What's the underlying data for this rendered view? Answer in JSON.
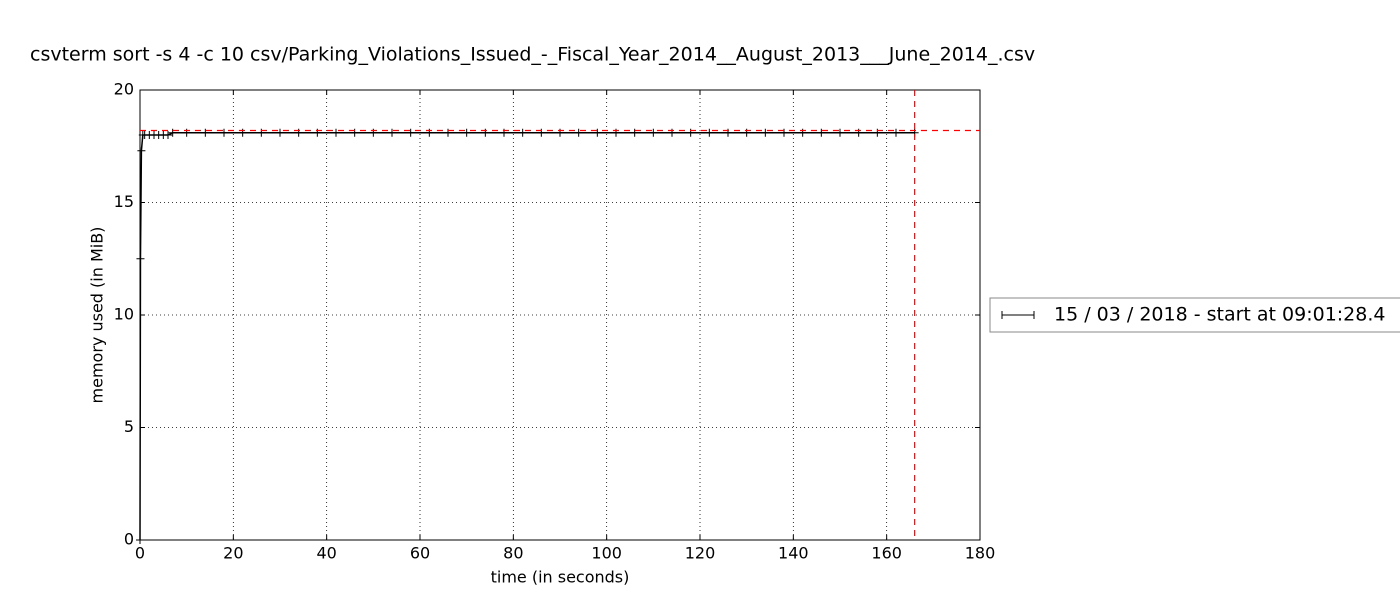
{
  "chart_data": {
    "type": "line",
    "title": "csvterm sort -s 4 -c 10 csv/Parking_Violations_Issued_-_Fiscal_Year_2014__August_2013___June_2014_.csv",
    "x_label": "time (in seconds)",
    "y_label": "memory used (in MiB)",
    "x": [
      0,
      0.1,
      0.3,
      0.6,
      1,
      2,
      3,
      4,
      5,
      6,
      7,
      10,
      14,
      18,
      22,
      26,
      30,
      34,
      38,
      42,
      46,
      50,
      54,
      58,
      62,
      66,
      70,
      74,
      78,
      82,
      86,
      90,
      94,
      98,
      102,
      106,
      110,
      114,
      118,
      122,
      126,
      130,
      134,
      138,
      142,
      146,
      150,
      154,
      158,
      162,
      166
    ],
    "series": [
      {
        "name": "15 / 03 / 2018 - start at 09:01:28.4",
        "color": "#000000",
        "values": [
          0,
          12.5,
          17.3,
          18.0,
          18.0,
          18.0,
          18.0,
          18.0,
          18.0,
          18.0,
          18.1,
          18.1,
          18.1,
          18.1,
          18.1,
          18.1,
          18.1,
          18.1,
          18.1,
          18.1,
          18.1,
          18.1,
          18.1,
          18.1,
          18.1,
          18.1,
          18.1,
          18.1,
          18.1,
          18.1,
          18.1,
          18.1,
          18.1,
          18.1,
          18.1,
          18.1,
          18.1,
          18.1,
          18.1,
          18.1,
          18.1,
          18.1,
          18.1,
          18.1,
          18.1,
          18.1,
          18.1,
          18.1,
          18.1,
          18.1,
          18.1
        ]
      }
    ],
    "hlines": [
      {
        "value": 18.2,
        "color": "#ff0000"
      }
    ],
    "vlines": [
      {
        "value": 166,
        "color": "#ff0000"
      }
    ],
    "xlim": [
      0,
      180
    ],
    "xticks": [
      0,
      20,
      40,
      60,
      80,
      100,
      120,
      140,
      160,
      180
    ],
    "ylim": [
      0,
      20
    ],
    "yticks": [
      0,
      5,
      10,
      15,
      20
    ],
    "grid": true,
    "legend": "right"
  }
}
